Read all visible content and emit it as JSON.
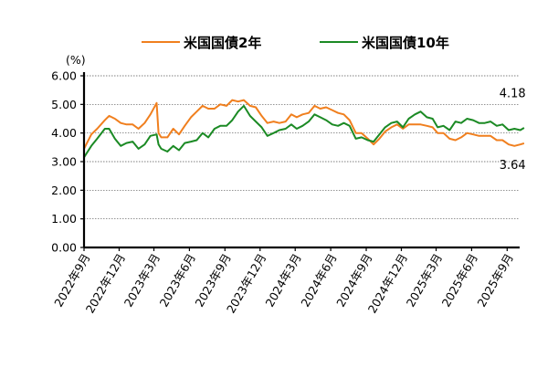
{
  "chart_data": {
    "type": "line",
    "unit_label": "(%)",
    "y_ticks": [
      "6.00",
      "5.00",
      "4.00",
      "3.00",
      "2.00",
      "1.00",
      "0.00"
    ],
    "ylim": [
      0,
      6
    ],
    "x_start": "2022-09",
    "x_end": "2025-10",
    "x_tick_labels": [
      "2022年9月",
      "2022年12月",
      "2023年3月",
      "2023年6月",
      "2023年9月",
      "2023年12月",
      "2024年3月",
      "2024年6月",
      "2024年9月",
      "2024年12月",
      "2025年3月",
      "2025年6月",
      "2025年9月"
    ],
    "grid": "horizontal-dotted",
    "legend_position": "top",
    "series": [
      {
        "name": "米国国債2年",
        "color": "#f07f1e",
        "points": [
          [
            "2022-09-01",
            3.45
          ],
          [
            "2022-09-20",
            3.95
          ],
          [
            "2022-10-05",
            4.15
          ],
          [
            "2022-10-25",
            4.45
          ],
          [
            "2022-11-05",
            4.6
          ],
          [
            "2022-11-20",
            4.5
          ],
          [
            "2022-12-05",
            4.35
          ],
          [
            "2022-12-20",
            4.3
          ],
          [
            "2023-01-05",
            4.3
          ],
          [
            "2023-01-20",
            4.15
          ],
          [
            "2023-02-05",
            4.35
          ],
          [
            "2023-02-20",
            4.65
          ],
          [
            "2023-03-08",
            5.05
          ],
          [
            "2023-03-13",
            4.0
          ],
          [
            "2023-03-20",
            3.85
          ],
          [
            "2023-04-05",
            3.85
          ],
          [
            "2023-04-20",
            4.15
          ],
          [
            "2023-05-05",
            3.95
          ],
          [
            "2023-05-20",
            4.25
          ],
          [
            "2023-06-05",
            4.55
          ],
          [
            "2023-06-20",
            4.75
          ],
          [
            "2023-07-05",
            4.95
          ],
          [
            "2023-07-20",
            4.85
          ],
          [
            "2023-08-05",
            4.85
          ],
          [
            "2023-08-20",
            5.0
          ],
          [
            "2023-09-05",
            4.95
          ],
          [
            "2023-09-20",
            5.15
          ],
          [
            "2023-10-05",
            5.1
          ],
          [
            "2023-10-20",
            5.15
          ],
          [
            "2023-11-05",
            4.95
          ],
          [
            "2023-11-20",
            4.9
          ],
          [
            "2023-12-05",
            4.6
          ],
          [
            "2023-12-20",
            4.35
          ],
          [
            "2024-01-05",
            4.4
          ],
          [
            "2024-01-20",
            4.35
          ],
          [
            "2024-02-05",
            4.4
          ],
          [
            "2024-02-20",
            4.65
          ],
          [
            "2024-03-05",
            4.55
          ],
          [
            "2024-03-20",
            4.65
          ],
          [
            "2024-04-05",
            4.7
          ],
          [
            "2024-04-20",
            4.95
          ],
          [
            "2024-05-05",
            4.85
          ],
          [
            "2024-05-20",
            4.9
          ],
          [
            "2024-06-05",
            4.8
          ],
          [
            "2024-06-20",
            4.7
          ],
          [
            "2024-07-05",
            4.65
          ],
          [
            "2024-07-20",
            4.45
          ],
          [
            "2024-08-05",
            4.0
          ],
          [
            "2024-08-20",
            4.0
          ],
          [
            "2024-09-05",
            3.8
          ],
          [
            "2024-09-20",
            3.6
          ],
          [
            "2024-10-05",
            3.8
          ],
          [
            "2024-10-20",
            4.05
          ],
          [
            "2024-11-05",
            4.2
          ],
          [
            "2024-11-20",
            4.3
          ],
          [
            "2024-12-05",
            4.15
          ],
          [
            "2024-12-20",
            4.3
          ],
          [
            "2025-01-05",
            4.3
          ],
          [
            "2025-01-20",
            4.3
          ],
          [
            "2025-02-05",
            4.25
          ],
          [
            "2025-02-20",
            4.2
          ],
          [
            "2025-03-05",
            4.0
          ],
          [
            "2025-03-20",
            4.0
          ],
          [
            "2025-04-05",
            3.8
          ],
          [
            "2025-04-20",
            3.75
          ],
          [
            "2025-05-05",
            3.85
          ],
          [
            "2025-05-20",
            4.0
          ],
          [
            "2025-06-05",
            3.95
          ],
          [
            "2025-06-20",
            3.9
          ],
          [
            "2025-07-05",
            3.9
          ],
          [
            "2025-07-20",
            3.9
          ],
          [
            "2025-08-05",
            3.75
          ],
          [
            "2025-08-20",
            3.75
          ],
          [
            "2025-09-05",
            3.6
          ],
          [
            "2025-09-20",
            3.55
          ],
          [
            "2025-10-05",
            3.6
          ],
          [
            "2025-10-15",
            3.64
          ]
        ]
      },
      {
        "name": "米国国債10年",
        "color": "#1b8a24",
        "points": [
          [
            "2022-09-01",
            3.15
          ],
          [
            "2022-09-20",
            3.55
          ],
          [
            "2022-10-05",
            3.8
          ],
          [
            "2022-10-25",
            4.15
          ],
          [
            "2022-11-05",
            4.15
          ],
          [
            "2022-11-20",
            3.8
          ],
          [
            "2022-12-05",
            3.55
          ],
          [
            "2022-12-20",
            3.65
          ],
          [
            "2023-01-05",
            3.7
          ],
          [
            "2023-01-20",
            3.45
          ],
          [
            "2023-02-05",
            3.6
          ],
          [
            "2023-02-20",
            3.9
          ],
          [
            "2023-03-08",
            3.95
          ],
          [
            "2023-03-13",
            3.6
          ],
          [
            "2023-03-20",
            3.45
          ],
          [
            "2023-04-05",
            3.35
          ],
          [
            "2023-04-20",
            3.55
          ],
          [
            "2023-05-05",
            3.4
          ],
          [
            "2023-05-20",
            3.65
          ],
          [
            "2023-06-05",
            3.7
          ],
          [
            "2023-06-20",
            3.75
          ],
          [
            "2023-07-05",
            4.0
          ],
          [
            "2023-07-20",
            3.85
          ],
          [
            "2023-08-05",
            4.15
          ],
          [
            "2023-08-20",
            4.25
          ],
          [
            "2023-09-05",
            4.25
          ],
          [
            "2023-09-20",
            4.45
          ],
          [
            "2023-10-05",
            4.75
          ],
          [
            "2023-10-20",
            4.95
          ],
          [
            "2023-11-05",
            4.6
          ],
          [
            "2023-11-20",
            4.4
          ],
          [
            "2023-12-05",
            4.2
          ],
          [
            "2023-12-20",
            3.9
          ],
          [
            "2024-01-05",
            4.0
          ],
          [
            "2024-01-20",
            4.1
          ],
          [
            "2024-02-05",
            4.15
          ],
          [
            "2024-02-20",
            4.3
          ],
          [
            "2024-03-05",
            4.15
          ],
          [
            "2024-03-20",
            4.25
          ],
          [
            "2024-04-05",
            4.4
          ],
          [
            "2024-04-20",
            4.65
          ],
          [
            "2024-05-05",
            4.55
          ],
          [
            "2024-05-20",
            4.45
          ],
          [
            "2024-06-05",
            4.3
          ],
          [
            "2024-06-20",
            4.25
          ],
          [
            "2024-07-05",
            4.35
          ],
          [
            "2024-07-20",
            4.25
          ],
          [
            "2024-08-05",
            3.8
          ],
          [
            "2024-08-20",
            3.85
          ],
          [
            "2024-09-05",
            3.75
          ],
          [
            "2024-09-20",
            3.7
          ],
          [
            "2024-10-05",
            3.95
          ],
          [
            "2024-10-20",
            4.2
          ],
          [
            "2024-11-05",
            4.35
          ],
          [
            "2024-11-20",
            4.4
          ],
          [
            "2024-12-05",
            4.2
          ],
          [
            "2024-12-20",
            4.5
          ],
          [
            "2025-01-05",
            4.65
          ],
          [
            "2025-01-20",
            4.75
          ],
          [
            "2025-02-05",
            4.55
          ],
          [
            "2025-02-20",
            4.5
          ],
          [
            "2025-03-05",
            4.2
          ],
          [
            "2025-03-20",
            4.25
          ],
          [
            "2025-04-05",
            4.1
          ],
          [
            "2025-04-20",
            4.4
          ],
          [
            "2025-05-05",
            4.35
          ],
          [
            "2025-05-20",
            4.5
          ],
          [
            "2025-06-05",
            4.45
          ],
          [
            "2025-06-20",
            4.35
          ],
          [
            "2025-07-05",
            4.35
          ],
          [
            "2025-07-20",
            4.4
          ],
          [
            "2025-08-05",
            4.25
          ],
          [
            "2025-08-20",
            4.3
          ],
          [
            "2025-09-05",
            4.1
          ],
          [
            "2025-09-20",
            4.15
          ],
          [
            "2025-10-05",
            4.1
          ],
          [
            "2025-10-15",
            4.18
          ]
        ]
      }
    ],
    "annotations": [
      {
        "text": "4.18",
        "series": "米国国債10年",
        "x": "2025-09-15",
        "y": 5.25
      },
      {
        "text": "3.64",
        "series": "米国国債2年",
        "x": "2025-09-15",
        "y": 2.75
      }
    ]
  }
}
